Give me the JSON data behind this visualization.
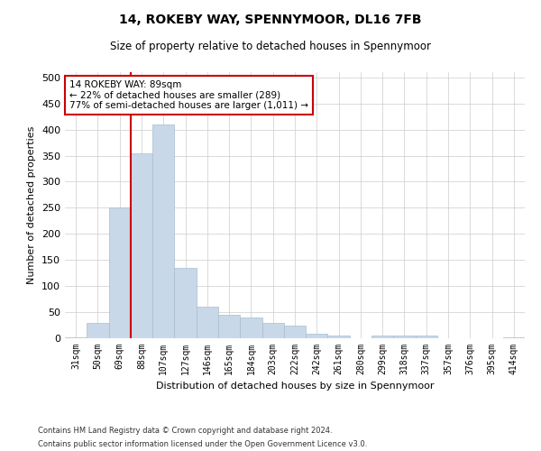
{
  "title": "14, ROKEBY WAY, SPENNYMOOR, DL16 7FB",
  "subtitle": "Size of property relative to detached houses in Spennymoor",
  "xlabel": "Distribution of detached houses by size in Spennymoor",
  "ylabel": "Number of detached properties",
  "categories": [
    "31sqm",
    "50sqm",
    "69sqm",
    "88sqm",
    "107sqm",
    "127sqm",
    "146sqm",
    "165sqm",
    "184sqm",
    "203sqm",
    "222sqm",
    "242sqm",
    "261sqm",
    "280sqm",
    "299sqm",
    "318sqm",
    "337sqm",
    "357sqm",
    "376sqm",
    "395sqm",
    "414sqm"
  ],
  "values": [
    2,
    30,
    250,
    355,
    410,
    135,
    60,
    45,
    40,
    30,
    25,
    8,
    5,
    0,
    5,
    5,
    5,
    0,
    0,
    0,
    2
  ],
  "bar_color": "#c8d8e8",
  "bar_edge_color": "#a8bece",
  "annotation_title": "14 ROKEBY WAY: 89sqm",
  "annotation_line1": "← 22% of detached houses are smaller (289)",
  "annotation_line2": "77% of semi-detached houses are larger (1,011) →",
  "annotation_color": "#cc0000",
  "vline_bin_index": 3,
  "ylim": [
    0,
    510
  ],
  "yticks": [
    0,
    50,
    100,
    150,
    200,
    250,
    300,
    350,
    400,
    450,
    500
  ],
  "footer_line1": "Contains HM Land Registry data © Crown copyright and database right 2024.",
  "footer_line2": "Contains public sector information licensed under the Open Government Licence v3.0.",
  "background_color": "#ffffff",
  "grid_color": "#cccccc"
}
